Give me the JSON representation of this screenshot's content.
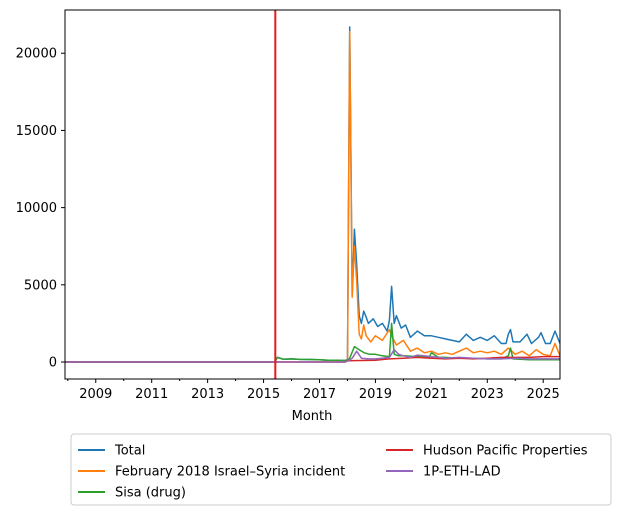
{
  "chart_data": {
    "type": "line",
    "xlabel": "Month",
    "ylabel": "",
    "xlim": [
      2007.9,
      2025.6
    ],
    "ylim": [
      -1100,
      22800
    ],
    "x_ticks": [
      2009,
      2011,
      2013,
      2015,
      2017,
      2019,
      2021,
      2023,
      2025
    ],
    "y_ticks": [
      0,
      5000,
      10000,
      15000,
      20000
    ],
    "grid": false,
    "legend_position": "below",
    "vertical_line": {
      "x": 2015.42,
      "color": "#e41a1c"
    },
    "series": [
      {
        "name": "Total",
        "color": "#1f77b4",
        "points": [
          [
            2007.9,
            0
          ],
          [
            2015.4,
            0
          ],
          [
            2015.5,
            300
          ],
          [
            2015.7,
            180
          ],
          [
            2016.0,
            200
          ],
          [
            2016.3,
            170
          ],
          [
            2016.7,
            160
          ],
          [
            2017.0,
            150
          ],
          [
            2017.3,
            120
          ],
          [
            2017.6,
            120
          ],
          [
            2017.9,
            100
          ],
          [
            2018.0,
            150
          ],
          [
            2018.08,
            21700
          ],
          [
            2018.17,
            4300
          ],
          [
            2018.25,
            8600
          ],
          [
            2018.33,
            6300
          ],
          [
            2018.42,
            3000
          ],
          [
            2018.5,
            2500
          ],
          [
            2018.58,
            3300
          ],
          [
            2018.67,
            2900
          ],
          [
            2018.75,
            2500
          ],
          [
            2018.92,
            2800
          ],
          [
            2019.08,
            2300
          ],
          [
            2019.25,
            2500
          ],
          [
            2019.42,
            2000
          ],
          [
            2019.5,
            2700
          ],
          [
            2019.58,
            4900
          ],
          [
            2019.67,
            2500
          ],
          [
            2019.75,
            3000
          ],
          [
            2019.92,
            2200
          ],
          [
            2020.08,
            2400
          ],
          [
            2020.25,
            1600
          ],
          [
            2020.5,
            2000
          ],
          [
            2020.75,
            1700
          ],
          [
            2021.0,
            1700
          ],
          [
            2021.25,
            1600
          ],
          [
            2021.5,
            1500
          ],
          [
            2021.75,
            1400
          ],
          [
            2022.0,
            1300
          ],
          [
            2022.25,
            1800
          ],
          [
            2022.5,
            1400
          ],
          [
            2022.75,
            1600
          ],
          [
            2023.0,
            1400
          ],
          [
            2023.25,
            1700
          ],
          [
            2023.5,
            1200
          ],
          [
            2023.67,
            1200
          ],
          [
            2023.75,
            1800
          ],
          [
            2023.83,
            2100
          ],
          [
            2023.92,
            1300
          ],
          [
            2024.17,
            1300
          ],
          [
            2024.42,
            1800
          ],
          [
            2024.58,
            1200
          ],
          [
            2024.83,
            1600
          ],
          [
            2024.92,
            1900
          ],
          [
            2025.08,
            1200
          ],
          [
            2025.25,
            1200
          ],
          [
            2025.42,
            2000
          ],
          [
            2025.6,
            1200
          ]
        ]
      },
      {
        "name": "February 2018 Israel–Syria incident",
        "color": "#ff7f0e",
        "points": [
          [
            2007.9,
            0
          ],
          [
            2017.9,
            0
          ],
          [
            2018.0,
            50
          ],
          [
            2018.08,
            21400
          ],
          [
            2018.17,
            4200
          ],
          [
            2018.25,
            7500
          ],
          [
            2018.33,
            5200
          ],
          [
            2018.42,
            1800
          ],
          [
            2018.5,
            1500
          ],
          [
            2018.58,
            2400
          ],
          [
            2018.67,
            1700
          ],
          [
            2018.83,
            1300
          ],
          [
            2019.0,
            1700
          ],
          [
            2019.25,
            1400
          ],
          [
            2019.5,
            2100
          ],
          [
            2019.58,
            1700
          ],
          [
            2019.75,
            1100
          ],
          [
            2020.0,
            1400
          ],
          [
            2020.25,
            700
          ],
          [
            2020.5,
            900
          ],
          [
            2020.75,
            600
          ],
          [
            2021.0,
            700
          ],
          [
            2021.25,
            500
          ],
          [
            2021.5,
            600
          ],
          [
            2021.75,
            500
          ],
          [
            2022.0,
            700
          ],
          [
            2022.25,
            900
          ],
          [
            2022.5,
            600
          ],
          [
            2022.75,
            700
          ],
          [
            2023.0,
            600
          ],
          [
            2023.25,
            700
          ],
          [
            2023.5,
            500
          ],
          [
            2023.75,
            900
          ],
          [
            2024.0,
            500
          ],
          [
            2024.25,
            700
          ],
          [
            2024.5,
            400
          ],
          [
            2024.75,
            800
          ],
          [
            2025.0,
            500
          ],
          [
            2025.25,
            400
          ],
          [
            2025.42,
            1200
          ],
          [
            2025.6,
            400
          ]
        ]
      },
      {
        "name": "Sisa (drug)",
        "color": "#2ca02c",
        "points": [
          [
            2007.9,
            0
          ],
          [
            2015.4,
            0
          ],
          [
            2015.5,
            300
          ],
          [
            2015.7,
            180
          ],
          [
            2016.0,
            200
          ],
          [
            2016.3,
            170
          ],
          [
            2016.7,
            160
          ],
          [
            2017.0,
            150
          ],
          [
            2017.3,
            120
          ],
          [
            2017.6,
            120
          ],
          [
            2017.9,
            100
          ],
          [
            2018.0,
            100
          ],
          [
            2018.08,
            250
          ],
          [
            2018.25,
            1000
          ],
          [
            2018.42,
            800
          ],
          [
            2018.6,
            600
          ],
          [
            2018.8,
            500
          ],
          [
            2019.0,
            500
          ],
          [
            2019.25,
            400
          ],
          [
            2019.5,
            350
          ],
          [
            2019.58,
            2500
          ],
          [
            2019.67,
            500
          ],
          [
            2019.83,
            400
          ],
          [
            2020.0,
            400
          ],
          [
            2020.5,
            350
          ],
          [
            2020.92,
            300
          ],
          [
            2021.0,
            600
          ],
          [
            2021.25,
            300
          ],
          [
            2021.5,
            300
          ],
          [
            2022.0,
            250
          ],
          [
            2022.5,
            250
          ],
          [
            2023.0,
            200
          ],
          [
            2023.5,
            200
          ],
          [
            2023.75,
            400
          ],
          [
            2023.83,
            900
          ],
          [
            2023.92,
            200
          ],
          [
            2024.5,
            150
          ],
          [
            2025.0,
            150
          ],
          [
            2025.6,
            150
          ]
        ]
      },
      {
        "name": "Hudson Pacific Properties",
        "color": "#d62728",
        "points": [
          [
            2007.9,
            0
          ],
          [
            2017.9,
            0
          ],
          [
            2018.0,
            80
          ],
          [
            2018.5,
            100
          ],
          [
            2019.0,
            120
          ],
          [
            2019.5,
            200
          ],
          [
            2020.0,
            250
          ],
          [
            2020.5,
            300
          ],
          [
            2021.0,
            250
          ],
          [
            2021.5,
            200
          ],
          [
            2022.0,
            250
          ],
          [
            2022.5,
            200
          ],
          [
            2023.0,
            250
          ],
          [
            2023.5,
            300
          ],
          [
            2024.0,
            300
          ],
          [
            2024.5,
            300
          ],
          [
            2025.0,
            350
          ],
          [
            2025.6,
            350
          ]
        ]
      },
      {
        "name": "1P-ETH-LAD",
        "color": "#9467bd",
        "points": [
          [
            2007.9,
            0
          ],
          [
            2017.9,
            0
          ],
          [
            2018.0,
            50
          ],
          [
            2018.17,
            250
          ],
          [
            2018.33,
            700
          ],
          [
            2018.5,
            250
          ],
          [
            2018.75,
            200
          ],
          [
            2019.0,
            200
          ],
          [
            2019.5,
            300
          ],
          [
            2019.67,
            800
          ],
          [
            2019.83,
            500
          ],
          [
            2020.0,
            400
          ],
          [
            2020.25,
            300
          ],
          [
            2020.5,
            450
          ],
          [
            2021.0,
            350
          ],
          [
            2021.5,
            250
          ],
          [
            2022.0,
            300
          ],
          [
            2022.5,
            250
          ],
          [
            2023.0,
            200
          ],
          [
            2023.5,
            200
          ],
          [
            2024.0,
            250
          ],
          [
            2024.5,
            200
          ],
          [
            2025.0,
            200
          ],
          [
            2025.6,
            200
          ]
        ]
      }
    ]
  }
}
